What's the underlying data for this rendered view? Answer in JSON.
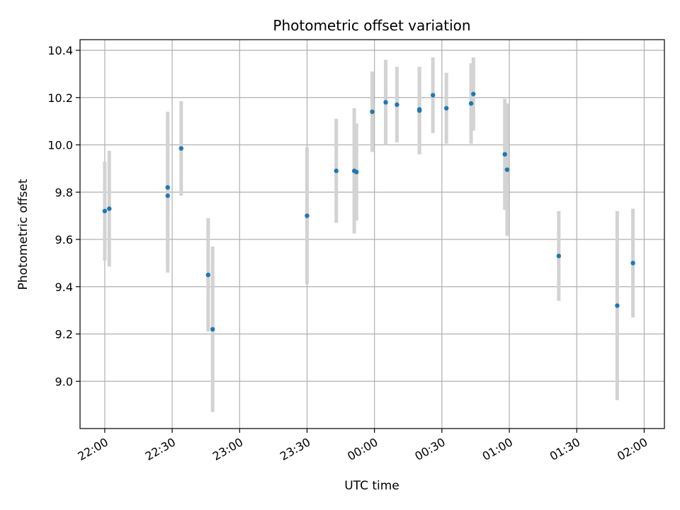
{
  "chart_data": {
    "type": "scatter",
    "title": "Photometric offset variation",
    "xlabel": "UTC time",
    "ylabel": "Photometric offset",
    "x_axis_type": "time",
    "x_ticks": [
      "22:00",
      "22:30",
      "23:00",
      "23:30",
      "00:00",
      "00:30",
      "01:00",
      "01:30",
      "02:00"
    ],
    "x_range": [
      "21:49",
      "02:09"
    ],
    "y_ticks": [
      "9.0",
      "9.2",
      "9.4",
      "9.6",
      "9.8",
      "10.0",
      "10.2",
      "10.4"
    ],
    "ylim": [
      8.8,
      10.445
    ],
    "grid": true,
    "point_color": "#1f77b4",
    "errorbar_color": "#d3d3d3",
    "points": [
      {
        "x": "22:00",
        "y": 9.72,
        "err": 0.21
      },
      {
        "x": "22:02",
        "y": 9.73,
        "err": 0.245
      },
      {
        "x": "22:28",
        "y": 9.82,
        "err": 0.32
      },
      {
        "x": "22:28",
        "y": 9.785,
        "err": 0.325
      },
      {
        "x": "22:34",
        "y": 9.985,
        "err": 0.2
      },
      {
        "x": "22:46",
        "y": 9.45,
        "err": 0.24
      },
      {
        "x": "22:48",
        "y": 9.22,
        "err": 0.35
      },
      {
        "x": "23:30",
        "y": 9.7,
        "err": 0.29
      },
      {
        "x": "23:43",
        "y": 9.89,
        "err": 0.22
      },
      {
        "x": "23:51",
        "y": 9.89,
        "err": 0.265
      },
      {
        "x": "23:52",
        "y": 9.885,
        "err": 0.205
      },
      {
        "x": "23:59",
        "y": 10.14,
        "err": 0.17
      },
      {
        "x": "00:05",
        "y": 10.18,
        "err": 0.18
      },
      {
        "x": "00:10",
        "y": 10.17,
        "err": 0.16
      },
      {
        "x": "00:20",
        "y": 10.15,
        "err": 0.18
      },
      {
        "x": "00:20",
        "y": 10.145,
        "err": 0.185
      },
      {
        "x": "00:26",
        "y": 10.21,
        "err": 0.16
      },
      {
        "x": "00:32",
        "y": 10.155,
        "err": 0.15
      },
      {
        "x": "00:43",
        "y": 10.175,
        "err": 0.17
      },
      {
        "x": "00:44",
        "y": 10.215,
        "err": 0.155
      },
      {
        "x": "00:58",
        "y": 9.96,
        "err": 0.235
      },
      {
        "x": "00:59",
        "y": 9.895,
        "err": 0.28
      },
      {
        "x": "01:22",
        "y": 9.53,
        "err": 0.19
      },
      {
        "x": "01:48",
        "y": 9.32,
        "err": 0.4
      },
      {
        "x": "01:55",
        "y": 9.5,
        "err": 0.23
      }
    ]
  }
}
